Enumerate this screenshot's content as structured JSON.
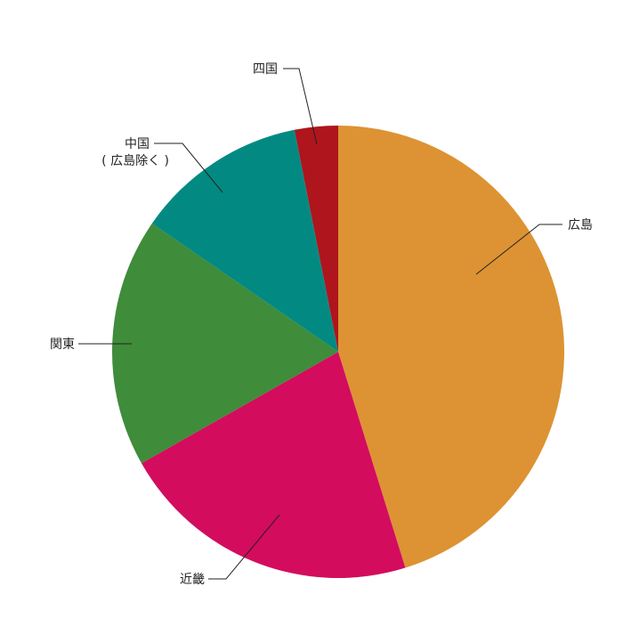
{
  "chart_data": {
    "type": "pie",
    "title": "",
    "start": "12 o'clock",
    "direction": "clockwise",
    "slices": [
      {
        "label": [
          "広島"
        ],
        "value": 45.2,
        "color": "#DD9333"
      },
      {
        "label": [
          "近畿"
        ],
        "value": 21.6,
        "color": "#D30C5E"
      },
      {
        "label": [
          "関東"
        ],
        "value": 17.8,
        "color": "#3F8C3A"
      },
      {
        "label": [
          "中国",
          "( 広島除く )"
        ],
        "value": 12.3,
        "color": "#028A82"
      },
      {
        "label": [
          "四国"
        ],
        "value": 3.1,
        "color": "#AE151D"
      }
    ]
  }
}
